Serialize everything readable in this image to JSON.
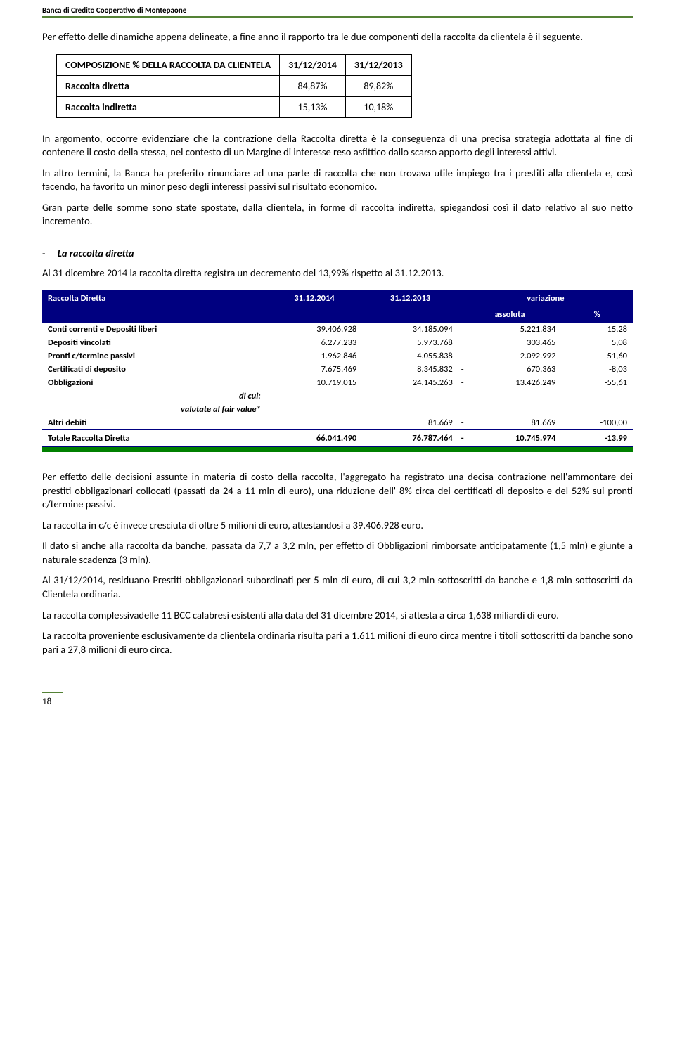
{
  "header": {
    "bank_name": "Banca di Credito Cooperativo di Montepaone"
  },
  "intro": {
    "p1": "Per effetto delle dinamiche appena delineate, a fine anno il rapporto tra le due componenti della raccolta da clientela è il seguente."
  },
  "table1": {
    "title": "COMPOSIZIONE % DELLA RACCOLTA DA CLIENTELA",
    "col1": "31/12/2014",
    "col2": "31/12/2013",
    "rows": [
      {
        "label": "Raccolta diretta",
        "v1": "84,87%",
        "v2": "89,82%"
      },
      {
        "label": "Raccolta indiretta",
        "v1": "15,13%",
        "v2": "10,18%"
      }
    ]
  },
  "middle": {
    "p1": "In argomento, occorre evidenziare che la contrazione della Raccolta diretta è la conseguenza di una precisa strategia adottata al fine di contenere il costo della stessa, nel contesto di un Margine di interesse reso asfittico dallo scarso apporto degli interessi attivi.",
    "p2": "In altro termini, la Banca ha preferito rinunciare ad una parte di raccolta che non trovava utile impiego tra i prestiti alla clientela e, così facendo, ha favorito un minor peso degli interessi passivi sul risultato economico.",
    "p3": "Gran parte delle somme sono state spostate, dalla clientela, in forme di raccolta indiretta, spiegandosi così il dato relativo al suo netto incremento."
  },
  "section": {
    "heading": "La raccolta diretta",
    "p1": "Al 31 dicembre 2014 la raccolta diretta registra un decremento del 13,99% rispetto al 31.12.2013."
  },
  "table2": {
    "head": {
      "title": "Raccolta Diretta",
      "c1": "31.12.2014",
      "c2": "31.12.2013",
      "c3": "variazione",
      "c3a": "assoluta",
      "c3b": "%"
    },
    "rows": [
      {
        "label": "Conti correnti e Depositi liberi",
        "v1": "39.406.928",
        "v2": "34.185.094",
        "sign": "",
        "v3": "5.221.834",
        "v4": "15,28"
      },
      {
        "label": "Depositi vincolati",
        "v1": "6.277.233",
        "v2": "5.973.768",
        "sign": "",
        "v3": "303.465",
        "v4": "5,08"
      },
      {
        "label": "Pronti c/termine passivi",
        "v1": "1.962.846",
        "v2": "4.055.838",
        "sign": "-",
        "v3": "2.092.992",
        "v4": "-51,60"
      },
      {
        "label": "Certificati di deposito",
        "v1": "7.675.469",
        "v2": "8.345.832",
        "sign": "-",
        "v3": "670.363",
        "v4": "-8,03"
      },
      {
        "label": "Obbligazioni",
        "v1": "10.719.015",
        "v2": "24.145.263",
        "sign": "-",
        "v3": "13.426.249",
        "v4": "-55,61"
      }
    ],
    "sub1": "di cui:",
    "sub2": "valutate al fair value*",
    "row_altri": {
      "label": "Altri debiti",
      "v1": "",
      "v2": "81.669",
      "sign": "-",
      "v3": "81.669",
      "v4": "-100,00"
    },
    "total": {
      "label": "Totale Raccolta Diretta",
      "v1": "66.041.490",
      "v2": "76.787.464",
      "sign": "-",
      "v3": "10.745.974",
      "v4": "-13,99"
    }
  },
  "bottom": {
    "p1": "Per effetto delle decisioni assunte in materia di costo della raccolta, l'aggregato ha registrato una decisa contrazione nell'ammontare dei prestiti obbligazionari collocati (passati da 24 a 11 mln di euro), una riduzione dell' 8% circa dei certificati di deposito e del 52% sui pronti c/termine passivi.",
    "p2": "La raccolta in c/c è invece cresciuta di oltre 5 milioni di euro, attestandosi a 39.406.928 euro.",
    "p3": "Il dato si anche alla raccolta da banche, passata da 7,7 a 3,2 mln, per effetto di Obbligazioni rimborsate anticipatamente (1,5 mln) e giunte a naturale scadenza (3 mln).",
    "p4": "Al 31/12/2014, residuano Prestiti obbligazionari subordinati per 5 mln di euro, di cui 3,2 mln sottoscritti da banche e 1,8 mln sottoscritti da Clientela ordinaria.",
    "p5": "La raccolta complessivadelle 11 BCC calabresi esistenti alla data del 31 dicembre 2014, si attesta a circa 1,638 miliardi di euro.",
    "p6": "La raccolta proveniente esclusivamente da clientela ordinaria risulta pari a 1.611 milioni di euro circa mentre i titoli sottoscritti da banche sono pari a 27,8 milioni di euro circa."
  },
  "page_number": "18"
}
